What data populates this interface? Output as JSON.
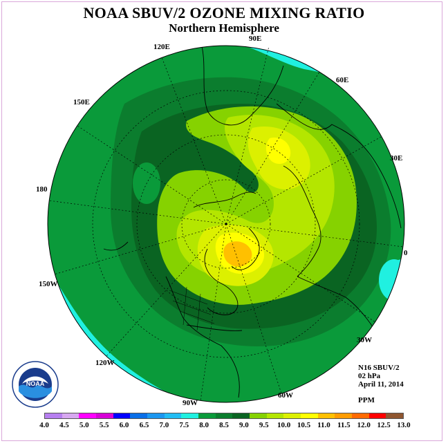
{
  "header": {
    "title": "NOAA SBUV/2 OZONE MIXING RATIO",
    "subtitle": "Northern Hemisphere"
  },
  "longitude_labels": [
    "120E",
    "90E",
    "60E",
    "150E",
    "30E",
    "180",
    "0",
    "150W",
    "30W",
    "120W",
    "60W",
    "90W"
  ],
  "info": {
    "instrument": "N16 SBUV/2",
    "pressure": "02 hPa",
    "date": "April 11, 2014",
    "units": "PPM"
  },
  "logo": {
    "icon": "noaa-logo-icon",
    "text": "NOAA"
  },
  "colorbar": {
    "colors": [
      "#b77ff0",
      "#d7a8f0",
      "#ff00ff",
      "#d700d7",
      "#0000ff",
      "#0a6fe8",
      "#1c97f0",
      "#22bdf4",
      "#20f0e0",
      "#0a9a3a",
      "#0b7d2e",
      "#0a6422",
      "#86d200",
      "#b4e600",
      "#dcf000",
      "#ffff00",
      "#ffc000",
      "#ff9c00",
      "#ff6a00",
      "#ff0000",
      "#8f5630"
    ],
    "tick_labels": [
      "4.0",
      "4.5",
      "5.0",
      "5.5",
      "6.0",
      "6.5",
      "7.0",
      "7.5",
      "8.0",
      "8.5",
      "9.0",
      "9.5",
      "10.0",
      "10.5",
      "11.0",
      "11.5",
      "12.0",
      "12.5",
      "13.0"
    ]
  },
  "map_colors": {
    "ocean_ring": "#20f0e0",
    "green_8_0": "#0a9a3a",
    "green_8_5": "#0b7d2e",
    "green_9_0": "#0a6422",
    "yg_9_5": "#86d200",
    "yg_10_0": "#b4e600",
    "y_10_5": "#dcf000",
    "y_11_0": "#ffff00",
    "orange_11_5": "#ffc000"
  }
}
